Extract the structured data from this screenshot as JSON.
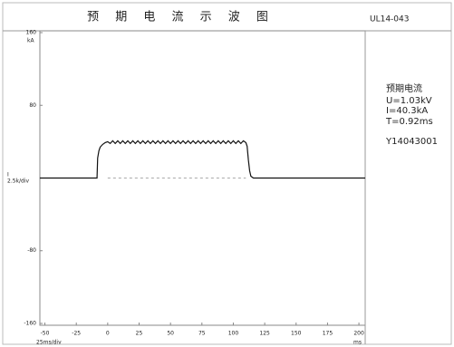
{
  "chart_data": {
    "type": "line",
    "title": "预 期 电 流 示 波 图",
    "code": "UL14-043",
    "y_unit": "kA",
    "y_name": "I",
    "y_scale": "2.5k/div",
    "x_unit": "ms",
    "x_scale": "25ms/div",
    "color": "#111111",
    "xlim": [
      -54,
      205
    ],
    "ylim": [
      -162,
      162
    ],
    "xticks": [
      -50,
      -25,
      0,
      25,
      50,
      75,
      100,
      125,
      150,
      175,
      200
    ],
    "yticks": [
      160,
      80,
      -80,
      -160
    ],
    "x": [
      -54,
      -8.5,
      -8,
      -7,
      -6,
      -4,
      -2,
      0,
      2,
      4,
      6,
      8,
      10,
      12,
      14,
      16,
      18,
      20,
      22,
      24,
      26,
      28,
      30,
      32,
      34,
      36,
      38,
      40,
      42,
      44,
      46,
      48,
      50,
      52,
      54,
      56,
      58,
      60,
      62,
      64,
      66,
      68,
      70,
      72,
      74,
      76,
      78,
      80,
      82,
      84,
      86,
      88,
      90,
      92,
      94,
      96,
      98,
      100,
      102,
      104,
      106,
      108,
      110,
      111,
      112,
      113,
      114,
      116,
      205
    ],
    "values": [
      0,
      0,
      22,
      30,
      34,
      37,
      39,
      40,
      38,
      41,
      38,
      41,
      38,
      41,
      38,
      41,
      38,
      41,
      38,
      41,
      38,
      41,
      38,
      41,
      38,
      41,
      38,
      41,
      38,
      41,
      38,
      41,
      38,
      41,
      38,
      41,
      38,
      41,
      38,
      41,
      38,
      41,
      38,
      41,
      38,
      41,
      38,
      41,
      38,
      41,
      38,
      41,
      38,
      41,
      38,
      41,
      38,
      41,
      38,
      41,
      38,
      41,
      39,
      35,
      20,
      8,
      2,
      0,
      0
    ],
    "info": {
      "heading": "预期电流",
      "lines": [
        "U=1.03kV",
        "I=40.3kA",
        "T=0.92ms"
      ],
      "id": "Y14043001"
    }
  }
}
